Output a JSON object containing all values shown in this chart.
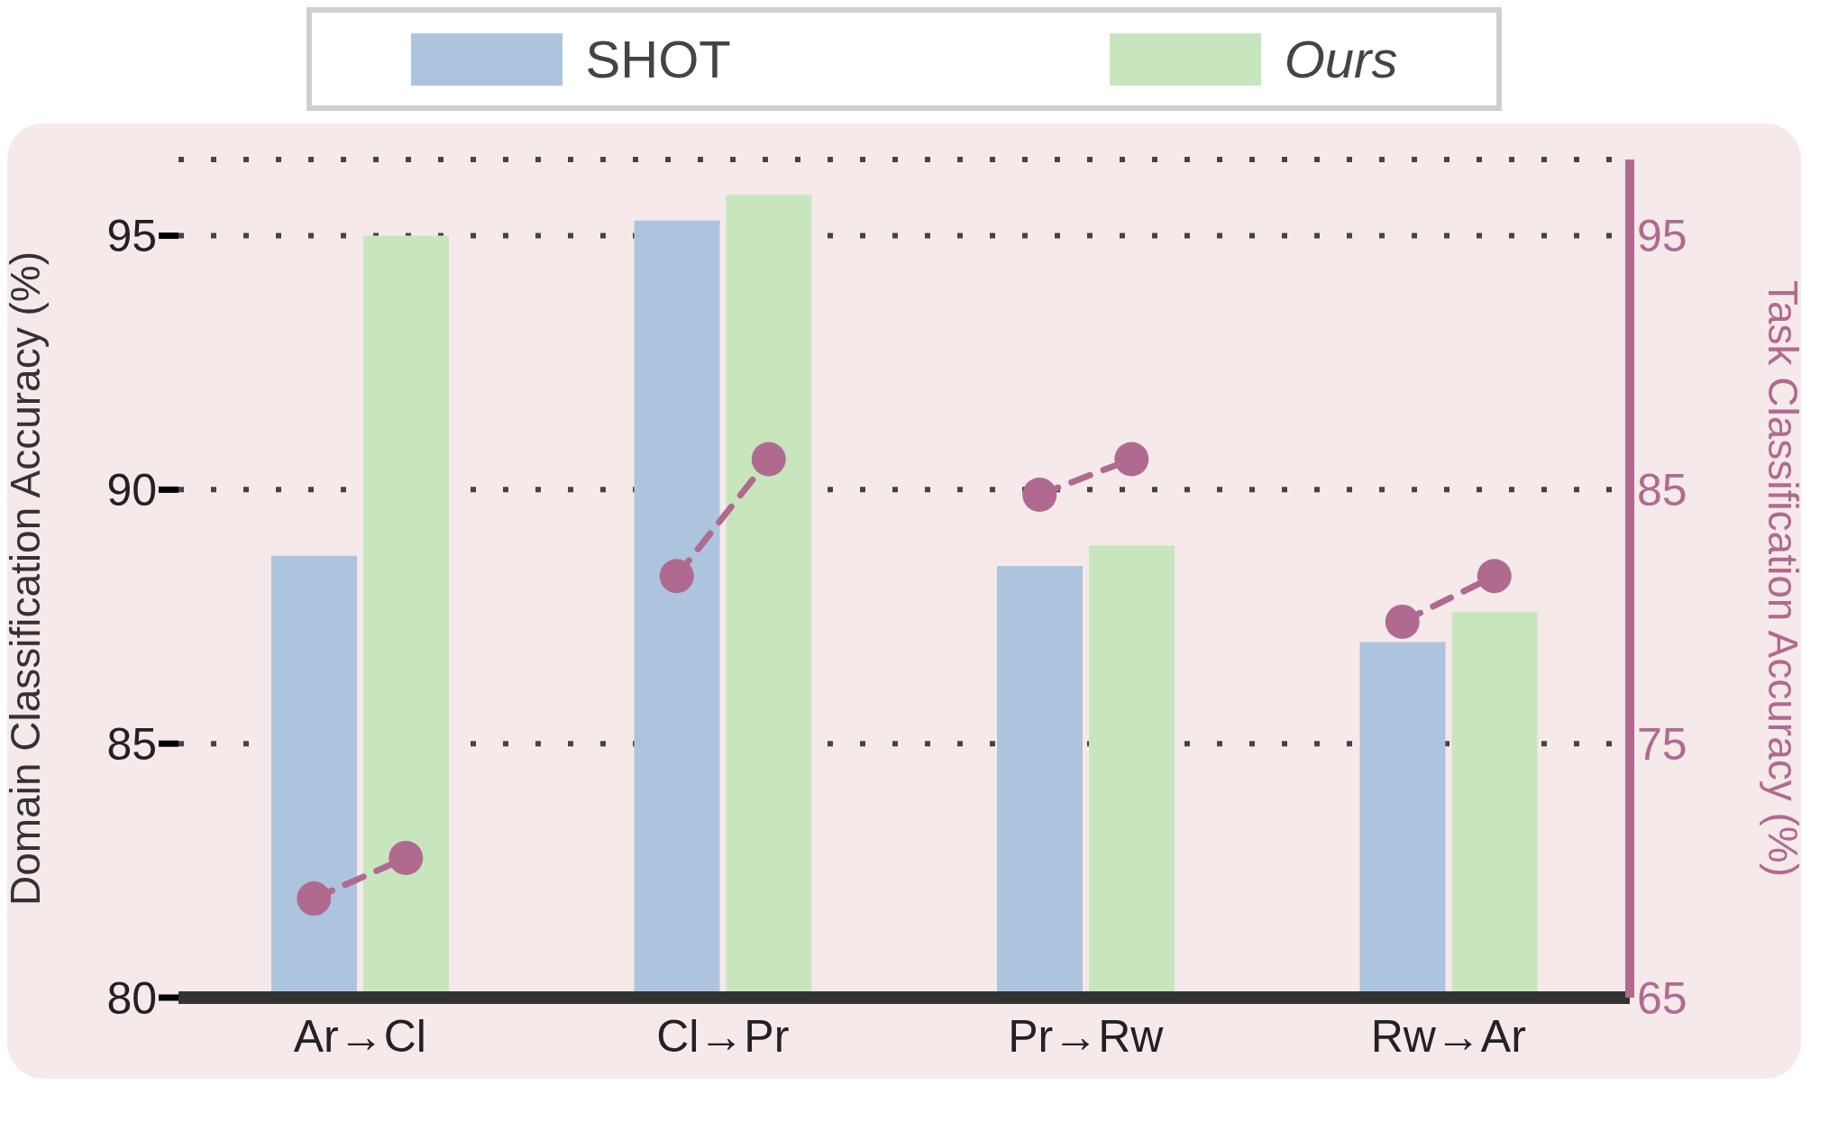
{
  "chart_data": {
    "type": "bar",
    "categories": [
      "Ar→Cl",
      "Cl→Pr",
      "Pr→Rw",
      "Rw→Ar"
    ],
    "ylabel": "Domain Classification Accuracy (%)",
    "y2label": "Task Classification Accuracy (%)",
    "ylim": [
      80,
      96.5
    ],
    "yticks": [
      80,
      85,
      90,
      95
    ],
    "y2lim": [
      65,
      98
    ],
    "y2ticks": [
      65,
      75,
      85,
      95
    ],
    "series": [
      {
        "name": "SHOT",
        "color": "#adc4de",
        "values": [
          88.7,
          95.3,
          88.5,
          87.0
        ]
      },
      {
        "name": "Ours",
        "color": "#c8e6be",
        "values": [
          95.0,
          95.8,
          88.9,
          87.6
        ]
      },
      {
        "type": "scatter",
        "axis": "y2",
        "color": "#b06a90",
        "x": [
          "Ar→Cl",
          "Cl→Pr",
          "Pr→Rw",
          "Rw→Ar"
        ],
        "values": [
          68.9,
          81.6,
          84.8,
          79.8
        ]
      },
      {
        "type": "scatter",
        "axis": "y2",
        "color": "#b06a90",
        "x": [
          "Ar→Cl",
          "Cl→Pr",
          "Pr→Rw",
          "Rw→Ar"
        ],
        "values": [
          70.5,
          86.2,
          86.2,
          81.6
        ]
      }
    ],
    "grid": "y",
    "legend": "top",
    "marker": "circle",
    "line_style": "dashed"
  }
}
